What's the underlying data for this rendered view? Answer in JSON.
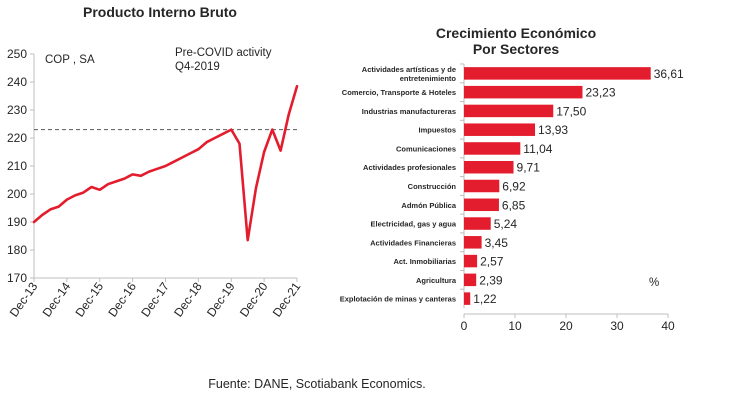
{
  "footer": {
    "source": "Fuente: DANE, Scotiabank Economics."
  },
  "chart_data": [
    {
      "type": "line",
      "title": "Producto Interno Bruto",
      "unit_label": "COP , SA",
      "annotation": [
        "Pre-COVID activity",
        "Q4-2019"
      ],
      "reference_line": 223,
      "ylim": [
        170,
        250
      ],
      "yticks": [
        170,
        180,
        190,
        200,
        210,
        220,
        230,
        240,
        250
      ],
      "xticks": [
        "Dec-13",
        "Dec-14",
        "Dec-15",
        "Dec-16",
        "Dec-17",
        "Dec-18",
        "Dec-19",
        "Dec-20",
        "Dec-21"
      ],
      "colors": {
        "line": "#e31d2d",
        "reference": "#595959",
        "axis": "#bfbfbf"
      },
      "series": [
        {
          "x": [
            "Dec-13",
            "Mar-14",
            "Jun-14",
            "Sep-14",
            "Dec-14",
            "Mar-15",
            "Jun-15",
            "Sep-15",
            "Dec-15",
            "Mar-16",
            "Jun-16",
            "Sep-16",
            "Dec-16",
            "Mar-17",
            "Jun-17",
            "Sep-17",
            "Dec-17",
            "Mar-18",
            "Jun-18",
            "Sep-18",
            "Dec-18",
            "Mar-19",
            "Jun-19",
            "Sep-19",
            "Dec-19",
            "Mar-20",
            "Jun-20",
            "Sep-20",
            "Dec-20",
            "Mar-21",
            "Jun-21",
            "Sep-21",
            "Dec-21"
          ],
          "values": [
            190,
            192.5,
            194.5,
            195.5,
            198,
            199.5,
            200.5,
            202.5,
            201.5,
            203.5,
            204.5,
            205.5,
            207,
            206.5,
            208,
            209,
            210,
            211.5,
            213,
            214.5,
            216,
            218.5,
            220,
            221.5,
            223,
            218,
            183.5,
            202,
            215,
            223,
            215.5,
            228.5,
            238.5
          ]
        }
      ]
    },
    {
      "type": "bar",
      "orientation": "horizontal",
      "title": [
        "Crecimiento Económico",
        "Por Sectores"
      ],
      "unit_label": "%",
      "xlim": [
        0,
        40
      ],
      "xticks": [
        0,
        10,
        20,
        30,
        40
      ],
      "colors": {
        "bar": "#e31d2d",
        "axis": "#bfbfbf"
      },
      "categories": [
        [
          "Actividades artísticas y de",
          "entretenimiento"
        ],
        [
          "Comercio, Transporte & Hoteles"
        ],
        [
          "Industrias manufactureras"
        ],
        [
          "Impuestos"
        ],
        [
          "Comunicaciones"
        ],
        [
          "Actividades profesionales"
        ],
        [
          "Construcción"
        ],
        [
          "Admón Pública"
        ],
        [
          "Electricidad, gas y agua"
        ],
        [
          "Actividades Financieras"
        ],
        [
          "Act. Inmobiliarias"
        ],
        [
          "Agricultura"
        ],
        [
          "Explotación de minas y canteras"
        ]
      ],
      "values": [
        36.61,
        23.23,
        17.5,
        13.93,
        11.04,
        9.71,
        6.92,
        6.85,
        5.24,
        3.45,
        2.57,
        2.39,
        1.22
      ],
      "labels": [
        "36,61",
        "23,23",
        "17,50",
        "13,93",
        "11,04",
        "9,71",
        "6,92",
        "6,85",
        "5,24",
        "3,45",
        "2,57",
        "2,39",
        "1,22"
      ]
    }
  ]
}
